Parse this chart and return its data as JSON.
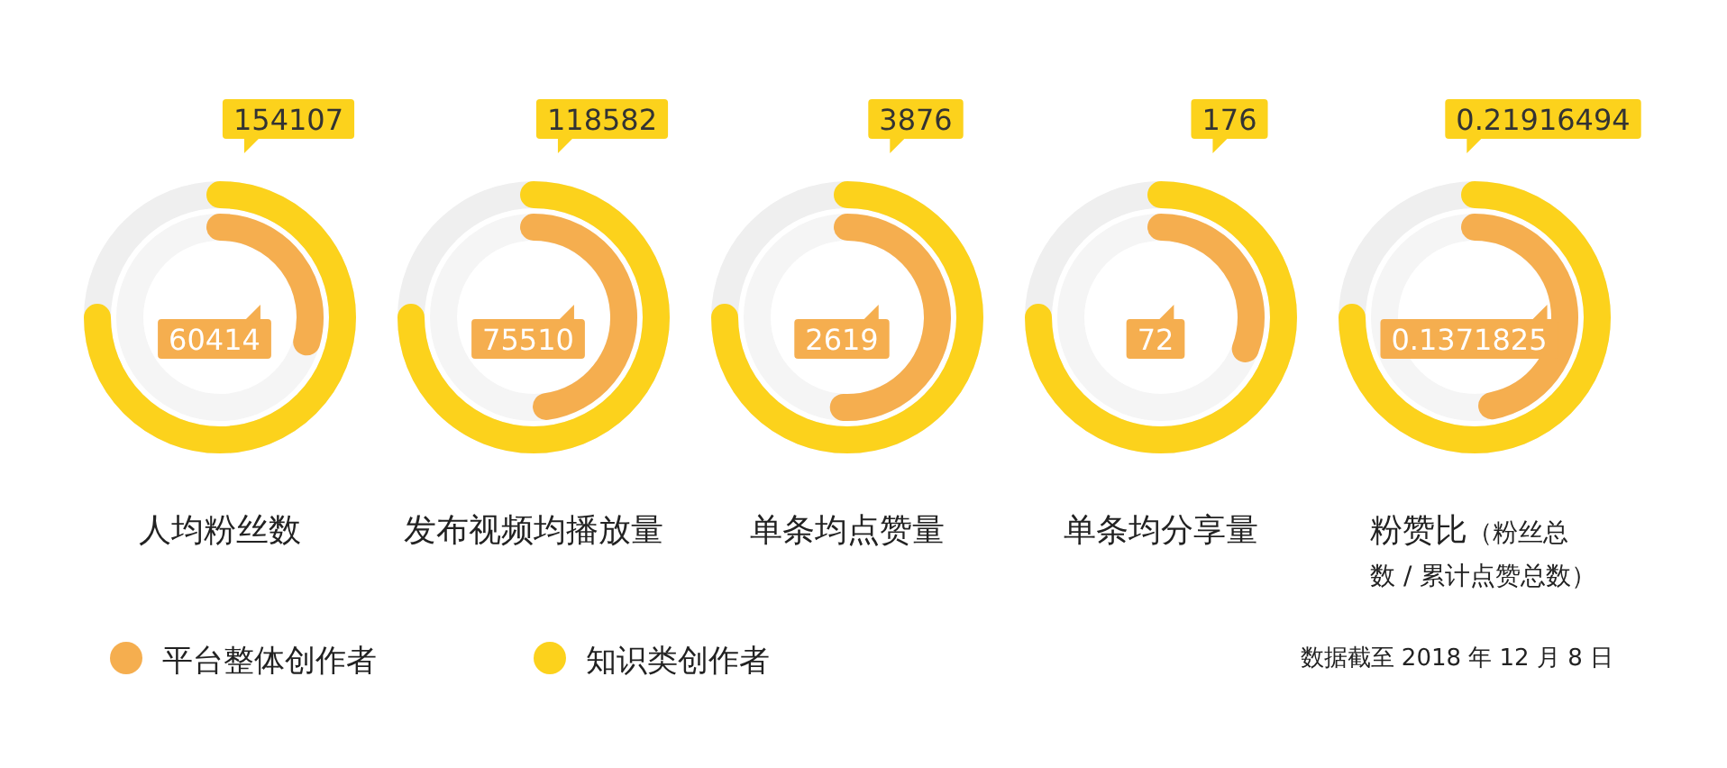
{
  "chart_data": {
    "type": "other",
    "categories": [
      "人均粉丝数",
      "发布视频均播放量",
      "单条均点赞量",
      "单条均分享量",
      "粉赞比（粉丝总数 / 累计点赞总数）"
    ],
    "series": [
      {
        "name": "平台整体创作者",
        "color": "#f5ae4f",
        "values": [
          60414,
          75510,
          2619,
          72,
          0.1371825
        ]
      },
      {
        "name": "知识类创作者",
        "color": "#fcd21c",
        "values": [
          154107,
          118582,
          3876,
          176,
          0.21916494
        ]
      }
    ],
    "data_labels": true,
    "legend": "bottom left",
    "annotations": [
      "数据截至 2018 年 12 月 8 日"
    ]
  }
}
